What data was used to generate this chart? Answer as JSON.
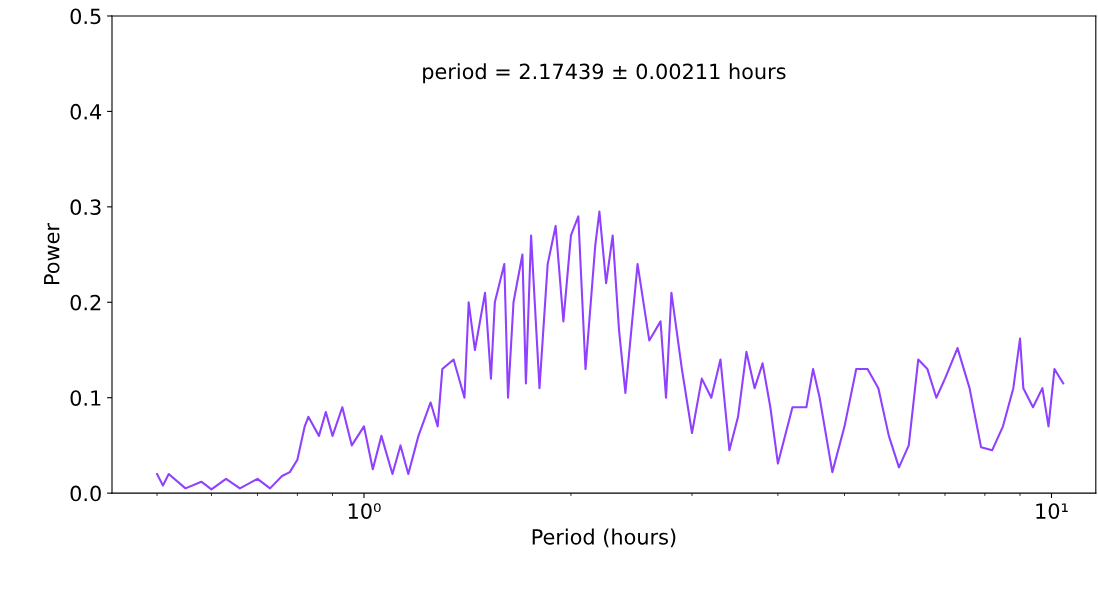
{
  "chart_data": {
    "type": "line",
    "xlabel": "Period (hours)",
    "ylabel": "Power",
    "annotations": [
      "period = 2.17439 ± 0.00211 hours"
    ],
    "log": "x",
    "grid": false,
    "marker": "none",
    "line_style": "solid",
    "xlim": [
      0.43,
      11.6
    ],
    "xticks": [
      {
        "value": 0.5,
        "label": null
      },
      {
        "value": 0.6,
        "label": null
      },
      {
        "value": 0.7,
        "label": null
      },
      {
        "value": 0.8,
        "label": null
      },
      {
        "value": 0.9,
        "label": null
      },
      {
        "value": 1,
        "label": "10⁰"
      },
      {
        "value": 2,
        "label": null
      },
      {
        "value": 3,
        "label": null
      },
      {
        "value": 4,
        "label": null
      },
      {
        "value": 5,
        "label": null
      },
      {
        "value": 6,
        "label": null
      },
      {
        "value": 7,
        "label": null
      },
      {
        "value": 8,
        "label": null
      },
      {
        "value": 9,
        "label": null
      },
      {
        "value": 10,
        "label": "10¹"
      }
    ],
    "ylim": [
      0,
      0.5
    ],
    "yticks": [
      {
        "value": 0,
        "label": "0.0"
      },
      {
        "value": 0.1,
        "label": "0.1"
      },
      {
        "value": 0.2,
        "label": "0.2"
      },
      {
        "value": 0.3,
        "label": "0.3"
      },
      {
        "value": 0.4,
        "label": "0.4"
      },
      {
        "value": 0.5,
        "label": "0.5"
      }
    ],
    "series": [
      {
        "color": "#9040ff",
        "x": [
          0.5,
          0.51,
          0.52,
          0.55,
          0.58,
          0.6,
          0.63,
          0.66,
          0.7,
          0.73,
          0.76,
          0.78,
          0.8,
          0.82,
          0.83,
          0.86,
          0.88,
          0.9,
          0.93,
          0.96,
          1.0,
          1.03,
          1.06,
          1.1,
          1.13,
          1.16,
          1.2,
          1.25,
          1.28,
          1.3,
          1.35,
          1.4,
          1.42,
          1.45,
          1.5,
          1.53,
          1.55,
          1.6,
          1.62,
          1.65,
          1.7,
          1.72,
          1.75,
          1.8,
          1.85,
          1.9,
          1.95,
          2.0,
          2.05,
          2.1,
          2.17,
          2.2,
          2.25,
          2.3,
          2.35,
          2.4,
          2.5,
          2.6,
          2.7,
          2.75,
          2.8,
          2.9,
          3.0,
          3.1,
          3.2,
          3.3,
          3.4,
          3.5,
          3.6,
          3.7,
          3.8,
          3.9,
          4.0,
          4.2,
          4.4,
          4.5,
          4.6,
          4.8,
          5.0,
          5.2,
          5.4,
          5.6,
          5.8,
          6.0,
          6.2,
          6.4,
          6.6,
          6.8,
          7.0,
          7.3,
          7.6,
          7.9,
          8.2,
          8.5,
          8.8,
          9.0,
          9.1,
          9.4,
          9.7,
          9.9,
          10.1,
          10.4
        ],
        "values": [
          0.02,
          0.008,
          0.02,
          0.005,
          0.012,
          0.004,
          0.015,
          0.005,
          0.015,
          0.005,
          0.018,
          0.022,
          0.035,
          0.07,
          0.08,
          0.06,
          0.085,
          0.06,
          0.09,
          0.05,
          0.07,
          0.025,
          0.06,
          0.02,
          0.05,
          0.02,
          0.06,
          0.095,
          0.07,
          0.13,
          0.14,
          0.1,
          0.2,
          0.15,
          0.21,
          0.12,
          0.2,
          0.24,
          0.1,
          0.2,
          0.25,
          0.115,
          0.27,
          0.11,
          0.24,
          0.28,
          0.18,
          0.27,
          0.29,
          0.13,
          0.26,
          0.295,
          0.22,
          0.27,
          0.17,
          0.105,
          0.24,
          0.16,
          0.18,
          0.1,
          0.21,
          0.13,
          0.063,
          0.12,
          0.1,
          0.14,
          0.045,
          0.08,
          0.148,
          0.11,
          0.136,
          0.09,
          0.031,
          0.09,
          0.09,
          0.13,
          0.1,
          0.022,
          0.07,
          0.13,
          0.13,
          0.11,
          0.06,
          0.027,
          0.05,
          0.14,
          0.13,
          0.1,
          0.12,
          0.152,
          0.11,
          0.048,
          0.045,
          0.07,
          0.11,
          0.162,
          0.11,
          0.09,
          0.11,
          0.07,
          0.13,
          0.115
        ]
      }
    ]
  }
}
